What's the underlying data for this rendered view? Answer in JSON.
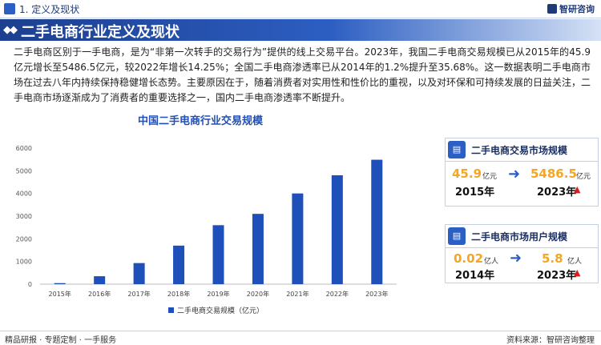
{
  "header": {
    "section_title": "1. 定义及现状",
    "logo_text": "智研咨询",
    "page_title": "二手电商行业定义及现状"
  },
  "intro_text": "二手电商区别于一手电商，是为“非第一次转手的交易行为”提供的线上交易平台。2023年，我国二手电商交易规模已从2015年的45.9亿元增长至5486.5亿元，较2022年增长14.25%；全国二手电商渗透率已从2014年的1.2%提升至35.68%。这一数据表明二手电商市场在过去八年内持续保持稳健增长态势。主要原因在于，随着消费者对实用性和性价比的重视，以及对环保和可持续发展的日益关注，二手电商市场逐渐成为了消费者的重要选择之一，国内二手电商渗透率不断提升。",
  "chart_data": {
    "type": "bar",
    "title": "中国二手电商行业交易规模",
    "categories": [
      "2015年",
      "2016年",
      "2017年",
      "2018年",
      "2019年",
      "2020年",
      "2021年",
      "2022年",
      "2023年"
    ],
    "series": [
      {
        "name": "二手电商交易规模（亿元）",
        "values": [
          45.9,
          350,
          930,
          1700,
          2600,
          3100,
          4000,
          4802,
          5486.5
        ]
      }
    ],
    "ylim": [
      0,
      6000
    ],
    "yticks": [
      "0",
      "1000",
      "2000",
      "3000",
      "4000",
      "5000",
      "6000"
    ],
    "ytick_values": [
      0,
      1000,
      2000,
      3000,
      4000,
      5000,
      6000
    ],
    "grid": false,
    "legend_position": "bottom",
    "bar_color": "#1f4fb8"
  },
  "cards": [
    {
      "title": "二手电商交易市场规模",
      "from_value": "45.9",
      "from_unit": "亿元",
      "from_year": "2015年",
      "to_value": "5486.5",
      "to_unit": "亿元",
      "to_year": "2023年",
      "trend_icon": "up-arrow-icon"
    },
    {
      "title": "二手电商市场用户规模",
      "from_value": "0.02",
      "from_unit": "亿人",
      "from_year": "2014年",
      "to_value": "5.8",
      "to_unit": "亿人",
      "to_year": "2023年",
      "trend_icon": "up-arrow-icon"
    }
  ],
  "footer": {
    "left": "精品研报 · 专题定制 · 一手服务",
    "right": "资料来源：智研咨询整理"
  },
  "colors": {
    "accent": "#2b5fc4",
    "title_band": "#1d3f8f",
    "highlight": "#f5a623",
    "up": "#d81e1e"
  }
}
